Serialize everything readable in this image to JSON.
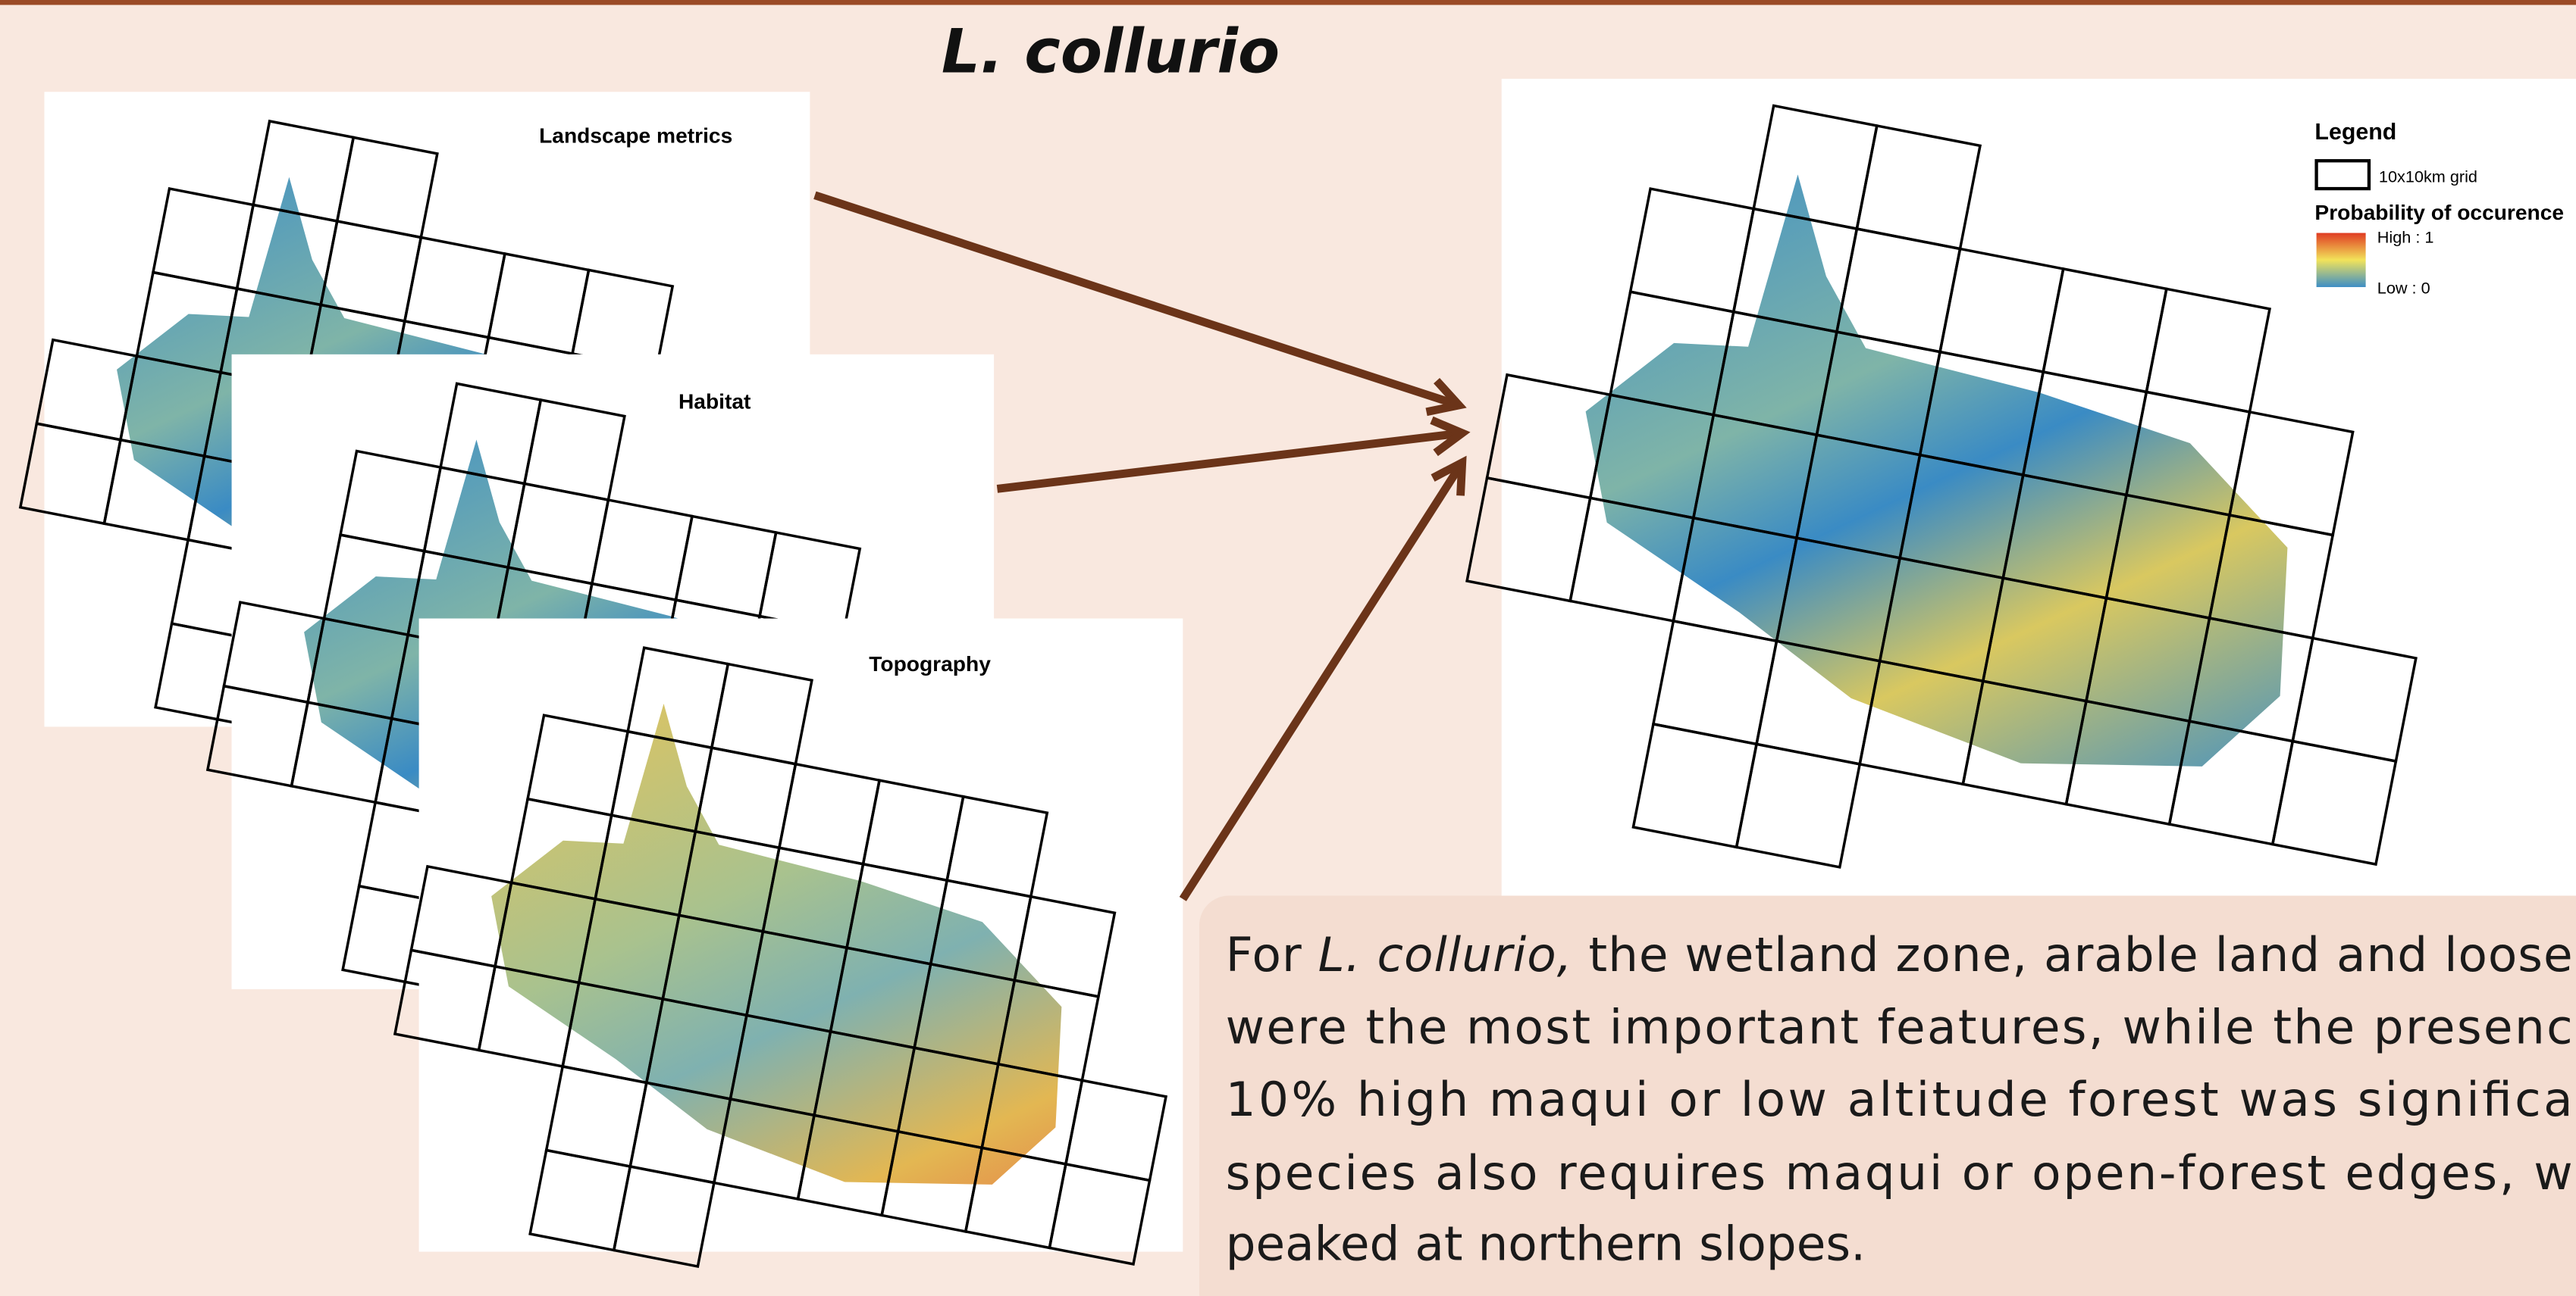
{
  "title": "L. collurio",
  "panels": [
    {
      "label": "Landscape metrics"
    },
    {
      "label": "Habitat"
    },
    {
      "label": "Topography"
    }
  ],
  "legend": {
    "title": "Legend",
    "grid": "10x10km grid",
    "probability": "Probability of occurence",
    "high": "High : 1",
    "low": "Low : 0"
  },
  "paragraph": {
    "lines": [
      [
        "For ",
        "L. collurio,",
        " the wetland zone, arable land and loose"
      ],
      [
        "were the most important features, while the presenc"
      ],
      [
        "10% high maqui or low altitude forest was significa"
      ],
      [
        "species also requires maqui or open-forest edges, w"
      ],
      [
        "peaked at northern slopes."
      ]
    ]
  }
}
